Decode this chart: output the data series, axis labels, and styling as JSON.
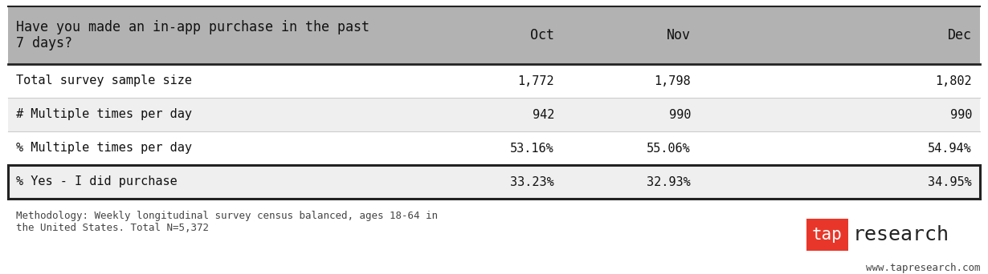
{
  "header_row": [
    "Have you made an in-app purchase in the past\n7 days?",
    "Oct",
    "Nov",
    "Dec"
  ],
  "rows": [
    [
      "Total survey sample size",
      "1,772",
      "1,798",
      "1,802"
    ],
    [
      "# Multiple times per day",
      "942",
      "990",
      "990"
    ],
    [
      "% Multiple times per day",
      "53.16%",
      "55.06%",
      "54.94%"
    ],
    [
      "% Yes - I did purchase",
      "33.23%",
      "32.93%",
      "34.95%"
    ]
  ],
  "header_bg": "#b2b2b2",
  "row_bg_even": "#ffffff",
  "row_bg_odd": "#efefef",
  "border_color": "#222222",
  "text_color": "#111111",
  "methodology_text": "Methodology: Weekly longitudinal survey census balanced, ages 18-64 in\nthe United States. Total N=5,372",
  "website_text": "www.tapresearch.com",
  "tap_bg": "#e8372a",
  "tap_text": "tap",
  "research_text": "research",
  "font_size": 11.0,
  "header_font_size": 12.0,
  "small_font_size": 9.0
}
